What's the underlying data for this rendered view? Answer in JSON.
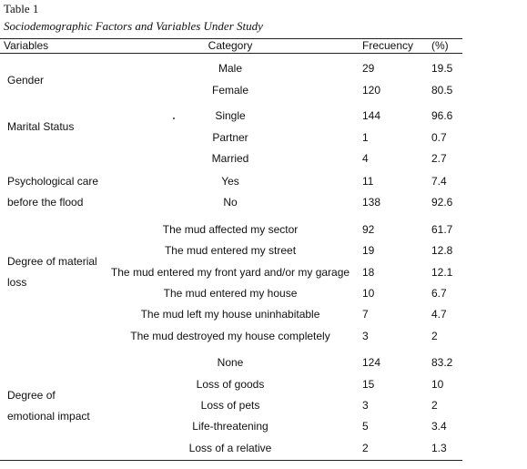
{
  "caption": {
    "table_number": "Table 1",
    "title": "Sociodemographic Factors and Variables Under Study"
  },
  "headers": {
    "variables": "Variables",
    "category": "Category",
    "frequency": "Frecuency",
    "percent": "(%)"
  },
  "groups": [
    {
      "name_lines": [
        "Gender"
      ],
      "rows": [
        {
          "category": "Male",
          "frequency": "29",
          "percent": "19.5"
        },
        {
          "category": "Female",
          "frequency": "120",
          "percent": "80.5"
        }
      ]
    },
    {
      "name_lines": [
        "Marital Status"
      ],
      "rows": [
        {
          "category": "Single",
          "frequency": "144",
          "percent": "96.6"
        },
        {
          "category": "Partner",
          "frequency": "1",
          "percent": "0.7"
        },
        {
          "category": "Married",
          "frequency": "4",
          "percent": "2.7"
        }
      ]
    },
    {
      "name_lines": [
        "Psychological care",
        "before the flood"
      ],
      "rows": [
        {
          "category": "Yes",
          "frequency": "11",
          "percent": "7.4"
        },
        {
          "category": "No",
          "frequency": "138",
          "percent": "92.6"
        }
      ]
    },
    {
      "name_lines": [
        "Degree of material",
        "loss"
      ],
      "rows": [
        {
          "category": "The mud affected my sector",
          "frequency": "92",
          "percent": "61.7"
        },
        {
          "category": "The mud entered my street",
          "frequency": "19",
          "percent": "12.8"
        },
        {
          "category": "The mud entered my front yard and/or my garage",
          "frequency": "18",
          "percent": "12.1"
        },
        {
          "category": "The mud entered my house",
          "frequency": "10",
          "percent": "6.7"
        },
        {
          "category": "The mud left my house uninhabitable",
          "frequency": "7",
          "percent": "4.7"
        },
        {
          "category": "The mud destroyed my house completely",
          "frequency": "3",
          "percent": "2"
        }
      ]
    },
    {
      "name_lines": [
        "Degree of",
        "emotional impact"
      ],
      "rows": [
        {
          "category": "None",
          "frequency": "124",
          "percent": "83.2"
        },
        {
          "category": "Loss of goods",
          "frequency": "15",
          "percent": "10"
        },
        {
          "category": "Loss of pets",
          "frequency": "3",
          "percent": "2"
        },
        {
          "category": "Life-threatening",
          "frequency": "5",
          "percent": "3.4"
        },
        {
          "category": "Loss of a relative",
          "frequency": "2",
          "percent": "1.3"
        }
      ]
    }
  ]
}
